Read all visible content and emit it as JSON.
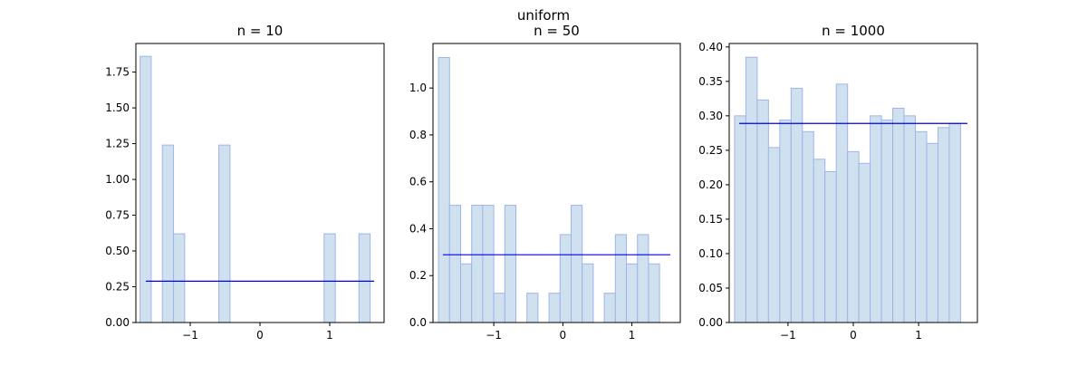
{
  "suptitle": "uniform",
  "colors": {
    "bar_fill": "#cfe0ef",
    "bar_stroke": "#9fb4ea",
    "density_line": "#0000ee",
    "axis": "#000000"
  },
  "chart_data": [
    {
      "type": "bar",
      "title": "n = 10",
      "xlim": [
        -1.78,
        1.78
      ],
      "ylim": [
        0,
        1.95
      ],
      "xticks": [
        -1,
        0,
        1
      ],
      "xtick_labels": [
        "−1",
        "0",
        "1"
      ],
      "yticks": [
        0,
        0.25,
        0.5,
        0.75,
        1.0,
        1.25,
        1.5,
        1.75
      ],
      "ytick_labels": [
        "0.00",
        "0.25",
        "0.50",
        "0.75",
        "1.00",
        "1.25",
        "1.50",
        "1.75"
      ],
      "bin_width": 0.16,
      "bins": [
        {
          "x": -1.64,
          "y": 1.86
        },
        {
          "x": -1.32,
          "y": 1.24
        },
        {
          "x": -1.16,
          "y": 0.62
        },
        {
          "x": -0.51,
          "y": 1.24
        },
        {
          "x": 1.0,
          "y": 0.62
        },
        {
          "x": 1.5,
          "y": 0.62
        }
      ],
      "density": 0.289
    },
    {
      "type": "bar",
      "title": "n = 50",
      "xlim": [
        -1.88,
        1.7
      ],
      "ylim": [
        0,
        1.19
      ],
      "xticks": [
        -1,
        0,
        1
      ],
      "xtick_labels": [
        "−1",
        "0",
        "1"
      ],
      "yticks": [
        0,
        0.2,
        0.4,
        0.6,
        0.8,
        1.0
      ],
      "ytick_labels": [
        "0.0",
        "0.2",
        "0.4",
        "0.6",
        "0.8",
        "1.0"
      ],
      "bin_width": 0.16,
      "bins": [
        {
          "x": -1.72,
          "y": 1.13
        },
        {
          "x": -1.56,
          "y": 0.5
        },
        {
          "x": -1.4,
          "y": 0.25
        },
        {
          "x": -1.24,
          "y": 0.5
        },
        {
          "x": -1.08,
          "y": 0.5
        },
        {
          "x": -0.92,
          "y": 0.125
        },
        {
          "x": -0.76,
          "y": 0.5
        },
        {
          "x": -0.44,
          "y": 0.125
        },
        {
          "x": -0.12,
          "y": 0.125
        },
        {
          "x": 0.04,
          "y": 0.375
        },
        {
          "x": 0.2,
          "y": 0.5
        },
        {
          "x": 0.36,
          "y": 0.25
        },
        {
          "x": 0.68,
          "y": 0.125
        },
        {
          "x": 0.84,
          "y": 0.375
        },
        {
          "x": 1.0,
          "y": 0.25
        },
        {
          "x": 1.16,
          "y": 0.375
        },
        {
          "x": 1.32,
          "y": 0.25
        }
      ],
      "density": 0.289
    },
    {
      "type": "bar",
      "title": "n = 1000",
      "xlim": [
        -1.9,
        1.9
      ],
      "ylim": [
        0,
        0.405
      ],
      "xticks": [
        -1,
        0,
        1
      ],
      "xtick_labels": [
        "−1",
        "0",
        "1"
      ],
      "yticks": [
        0,
        0.05,
        0.1,
        0.15,
        0.2,
        0.25,
        0.3,
        0.35,
        0.4
      ],
      "ytick_labels": [
        "0.00",
        "0.05",
        "0.10",
        "0.15",
        "0.20",
        "0.25",
        "0.30",
        "0.35",
        "0.40"
      ],
      "bin_width": 0.173,
      "bins": [
        {
          "x": -1.731,
          "y": 0.3
        },
        {
          "x": -1.558,
          "y": 0.385
        },
        {
          "x": -1.385,
          "y": 0.323
        },
        {
          "x": -1.212,
          "y": 0.254
        },
        {
          "x": -1.039,
          "y": 0.294
        },
        {
          "x": -0.866,
          "y": 0.34
        },
        {
          "x": -0.693,
          "y": 0.277
        },
        {
          "x": -0.52,
          "y": 0.237
        },
        {
          "x": -0.347,
          "y": 0.219
        },
        {
          "x": -0.174,
          "y": 0.346
        },
        {
          "x": -0.001,
          "y": 0.248
        },
        {
          "x": 0.172,
          "y": 0.231
        },
        {
          "x": 0.345,
          "y": 0.3
        },
        {
          "x": 0.518,
          "y": 0.294
        },
        {
          "x": 0.691,
          "y": 0.311
        },
        {
          "x": 0.864,
          "y": 0.3
        },
        {
          "x": 1.037,
          "y": 0.277
        },
        {
          "x": 1.21,
          "y": 0.26
        },
        {
          "x": 1.383,
          "y": 0.283
        },
        {
          "x": 1.556,
          "y": 0.289
        }
      ],
      "density": 0.289
    }
  ]
}
